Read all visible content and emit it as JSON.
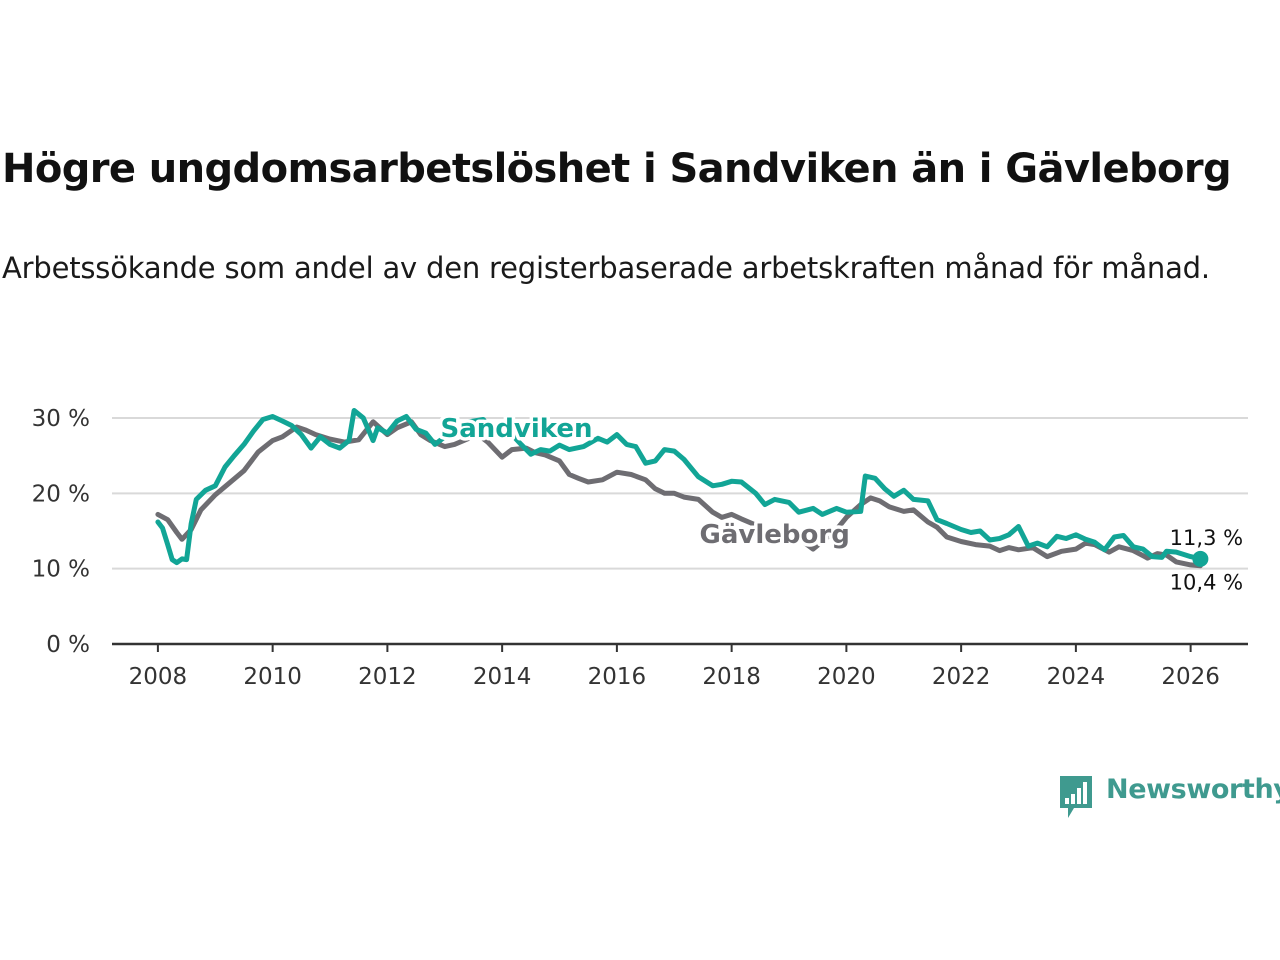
{
  "title": "Högre ungdomsarbetslöshet i Sandviken än i Gävleborg",
  "subtitle": "Arbetssökande som andel av den registerbaserade arbetskraften månad för månad.",
  "brand": {
    "name": "Newsworthy",
    "icon": "bar-chart-speech-bubble-icon",
    "color": "#3f9a8f"
  },
  "colors": {
    "sandviken": "#12a596",
    "gavleborg": "#6e6d72",
    "grid": "#d9d9d9",
    "axis": "#333333"
  },
  "chart_data": {
    "type": "line",
    "title": "Högre ungdomsarbetslöshet i Sandviken än i Gävleborg",
    "xlabel": "",
    "ylabel": "",
    "xlim": [
      2007.2,
      2027.0
    ],
    "ylim": [
      0,
      30
    ],
    "y_ticks": [
      0,
      10,
      20,
      30
    ],
    "y_tick_labels": [
      "0 %",
      "10 %",
      "20 %",
      "30 %"
    ],
    "x_ticks": [
      2008,
      2010,
      2012,
      2014,
      2016,
      2018,
      2020,
      2022,
      2024,
      2026
    ],
    "x_tick_labels": [
      "2008",
      "2010",
      "2012",
      "2014",
      "2016",
      "2018",
      "2020",
      "2022",
      "2024",
      "2026"
    ],
    "grid": true,
    "series": [
      {
        "name": "Gävleborg",
        "label": "Gävleborg",
        "end_label": "10,4 %",
        "points": [
          [
            2008.0,
            17.2
          ],
          [
            2008.17,
            16.5
          ],
          [
            2008.33,
            14.8
          ],
          [
            2008.42,
            13.9
          ],
          [
            2008.58,
            15.2
          ],
          [
            2008.75,
            17.8
          ],
          [
            2009.0,
            19.8
          ],
          [
            2009.25,
            21.4
          ],
          [
            2009.5,
            23.0
          ],
          [
            2009.75,
            25.5
          ],
          [
            2010.0,
            27.0
          ],
          [
            2010.17,
            27.5
          ],
          [
            2010.42,
            28.8
          ],
          [
            2010.58,
            28.4
          ],
          [
            2010.75,
            27.8
          ],
          [
            2011.0,
            27.2
          ],
          [
            2011.25,
            26.8
          ],
          [
            2011.5,
            27.1
          ],
          [
            2011.75,
            29.5
          ],
          [
            2012.0,
            27.8
          ],
          [
            2012.17,
            28.7
          ],
          [
            2012.42,
            29.5
          ],
          [
            2012.58,
            27.8
          ],
          [
            2012.75,
            27.0
          ],
          [
            2013.0,
            26.2
          ],
          [
            2013.17,
            26.5
          ],
          [
            2013.42,
            27.3
          ],
          [
            2013.58,
            27.8
          ],
          [
            2013.75,
            26.8
          ],
          [
            2014.0,
            24.8
          ],
          [
            2014.17,
            25.8
          ],
          [
            2014.42,
            26.0
          ],
          [
            2014.58,
            25.4
          ],
          [
            2014.75,
            25.1
          ],
          [
            2015.0,
            24.3
          ],
          [
            2015.17,
            22.5
          ],
          [
            2015.33,
            22.0
          ],
          [
            2015.5,
            21.5
          ],
          [
            2015.75,
            21.8
          ],
          [
            2016.0,
            22.8
          ],
          [
            2016.25,
            22.5
          ],
          [
            2016.5,
            21.8
          ],
          [
            2016.67,
            20.6
          ],
          [
            2016.83,
            20.0
          ],
          [
            2017.0,
            20.0
          ],
          [
            2017.17,
            19.5
          ],
          [
            2017.42,
            19.2
          ],
          [
            2017.67,
            17.5
          ],
          [
            2017.83,
            16.8
          ],
          [
            2018.0,
            17.2
          ],
          [
            2018.17,
            16.6
          ],
          [
            2018.42,
            15.8
          ],
          [
            2018.58,
            14.6
          ],
          [
            2018.75,
            14.3
          ],
          [
            2019.0,
            14.6
          ],
          [
            2019.17,
            14.0
          ],
          [
            2019.42,
            12.6
          ],
          [
            2019.58,
            13.6
          ],
          [
            2019.83,
            15.2
          ],
          [
            2020.0,
            16.8
          ],
          [
            2020.25,
            18.5
          ],
          [
            2020.42,
            19.4
          ],
          [
            2020.58,
            19.0
          ],
          [
            2020.75,
            18.2
          ],
          [
            2021.0,
            17.6
          ],
          [
            2021.17,
            17.8
          ],
          [
            2021.42,
            16.2
          ],
          [
            2021.58,
            15.5
          ],
          [
            2021.75,
            14.2
          ],
          [
            2022.0,
            13.6
          ],
          [
            2022.25,
            13.2
          ],
          [
            2022.5,
            13.0
          ],
          [
            2022.67,
            12.4
          ],
          [
            2022.83,
            12.8
          ],
          [
            2023.0,
            12.5
          ],
          [
            2023.25,
            12.8
          ],
          [
            2023.5,
            11.6
          ],
          [
            2023.75,
            12.3
          ],
          [
            2024.0,
            12.6
          ],
          [
            2024.17,
            13.4
          ],
          [
            2024.33,
            13.2
          ],
          [
            2024.58,
            12.2
          ],
          [
            2024.75,
            12.9
          ],
          [
            2025.0,
            12.4
          ],
          [
            2025.25,
            11.4
          ],
          [
            2025.42,
            12.0
          ],
          [
            2025.58,
            11.8
          ],
          [
            2025.75,
            10.9
          ],
          [
            2026.0,
            10.5
          ],
          [
            2026.17,
            10.4
          ]
        ]
      },
      {
        "name": "Sandviken",
        "label": "Sandviken",
        "end_label": "11,3 %",
        "points": [
          [
            2008.0,
            16.2
          ],
          [
            2008.08,
            15.4
          ],
          [
            2008.17,
            13.2
          ],
          [
            2008.25,
            11.2
          ],
          [
            2008.33,
            10.8
          ],
          [
            2008.42,
            11.3
          ],
          [
            2008.5,
            11.2
          ],
          [
            2008.58,
            16.0
          ],
          [
            2008.67,
            19.2
          ],
          [
            2008.83,
            20.4
          ],
          [
            2009.0,
            21.0
          ],
          [
            2009.17,
            23.5
          ],
          [
            2009.33,
            25.0
          ],
          [
            2009.5,
            26.5
          ],
          [
            2009.67,
            28.3
          ],
          [
            2009.83,
            29.8
          ],
          [
            2010.0,
            30.2
          ],
          [
            2010.17,
            29.6
          ],
          [
            2010.33,
            29.0
          ],
          [
            2010.5,
            27.8
          ],
          [
            2010.67,
            26.0
          ],
          [
            2010.83,
            27.5
          ],
          [
            2011.0,
            26.5
          ],
          [
            2011.17,
            26.0
          ],
          [
            2011.33,
            27.0
          ],
          [
            2011.42,
            31.0
          ],
          [
            2011.58,
            30.0
          ],
          [
            2011.75,
            27.0
          ],
          [
            2011.83,
            28.7
          ],
          [
            2012.0,
            28.0
          ],
          [
            2012.17,
            29.6
          ],
          [
            2012.33,
            30.2
          ],
          [
            2012.5,
            28.5
          ],
          [
            2012.67,
            28.0
          ],
          [
            2012.83,
            26.5
          ],
          [
            2013.0,
            27.5
          ],
          [
            2013.17,
            28.5
          ],
          [
            2013.42,
            29.5
          ],
          [
            2013.67,
            29.8
          ],
          [
            2013.83,
            28.5
          ],
          [
            2014.0,
            28.7
          ],
          [
            2014.17,
            27.8
          ],
          [
            2014.33,
            26.5
          ],
          [
            2014.5,
            25.2
          ],
          [
            2014.67,
            25.8
          ],
          [
            2014.83,
            25.6
          ],
          [
            2015.0,
            26.4
          ],
          [
            2015.17,
            25.8
          ],
          [
            2015.42,
            26.2
          ],
          [
            2015.67,
            27.3
          ],
          [
            2015.83,
            26.8
          ],
          [
            2016.0,
            27.8
          ],
          [
            2016.17,
            26.5
          ],
          [
            2016.33,
            26.2
          ],
          [
            2016.5,
            24.0
          ],
          [
            2016.67,
            24.3
          ],
          [
            2016.83,
            25.8
          ],
          [
            2017.0,
            25.6
          ],
          [
            2017.17,
            24.5
          ],
          [
            2017.42,
            22.2
          ],
          [
            2017.67,
            21.0
          ],
          [
            2017.83,
            21.2
          ],
          [
            2018.0,
            21.6
          ],
          [
            2018.17,
            21.5
          ],
          [
            2018.42,
            20.0
          ],
          [
            2018.58,
            18.5
          ],
          [
            2018.75,
            19.2
          ],
          [
            2019.0,
            18.8
          ],
          [
            2019.17,
            17.5
          ],
          [
            2019.42,
            18.0
          ],
          [
            2019.58,
            17.2
          ],
          [
            2019.83,
            18.0
          ],
          [
            2020.0,
            17.5
          ],
          [
            2020.25,
            17.6
          ],
          [
            2020.33,
            22.3
          ],
          [
            2020.5,
            22.0
          ],
          [
            2020.67,
            20.6
          ],
          [
            2020.83,
            19.6
          ],
          [
            2021.0,
            20.4
          ],
          [
            2021.17,
            19.2
          ],
          [
            2021.42,
            19.0
          ],
          [
            2021.58,
            16.5
          ],
          [
            2021.75,
            16.0
          ],
          [
            2022.0,
            15.2
          ],
          [
            2022.17,
            14.8
          ],
          [
            2022.33,
            15.0
          ],
          [
            2022.5,
            13.8
          ],
          [
            2022.67,
            14.0
          ],
          [
            2022.83,
            14.5
          ],
          [
            2023.0,
            15.6
          ],
          [
            2023.17,
            13.0
          ],
          [
            2023.33,
            13.4
          ],
          [
            2023.5,
            12.9
          ],
          [
            2023.67,
            14.3
          ],
          [
            2023.83,
            14.0
          ],
          [
            2024.0,
            14.5
          ],
          [
            2024.17,
            13.9
          ],
          [
            2024.33,
            13.5
          ],
          [
            2024.5,
            12.5
          ],
          [
            2024.67,
            14.2
          ],
          [
            2024.83,
            14.4
          ],
          [
            2025.0,
            12.9
          ],
          [
            2025.17,
            12.6
          ],
          [
            2025.33,
            11.6
          ],
          [
            2025.5,
            11.5
          ],
          [
            2025.58,
            12.3
          ],
          [
            2025.75,
            12.2
          ],
          [
            2026.0,
            11.6
          ],
          [
            2026.17,
            11.3
          ]
        ]
      }
    ]
  }
}
